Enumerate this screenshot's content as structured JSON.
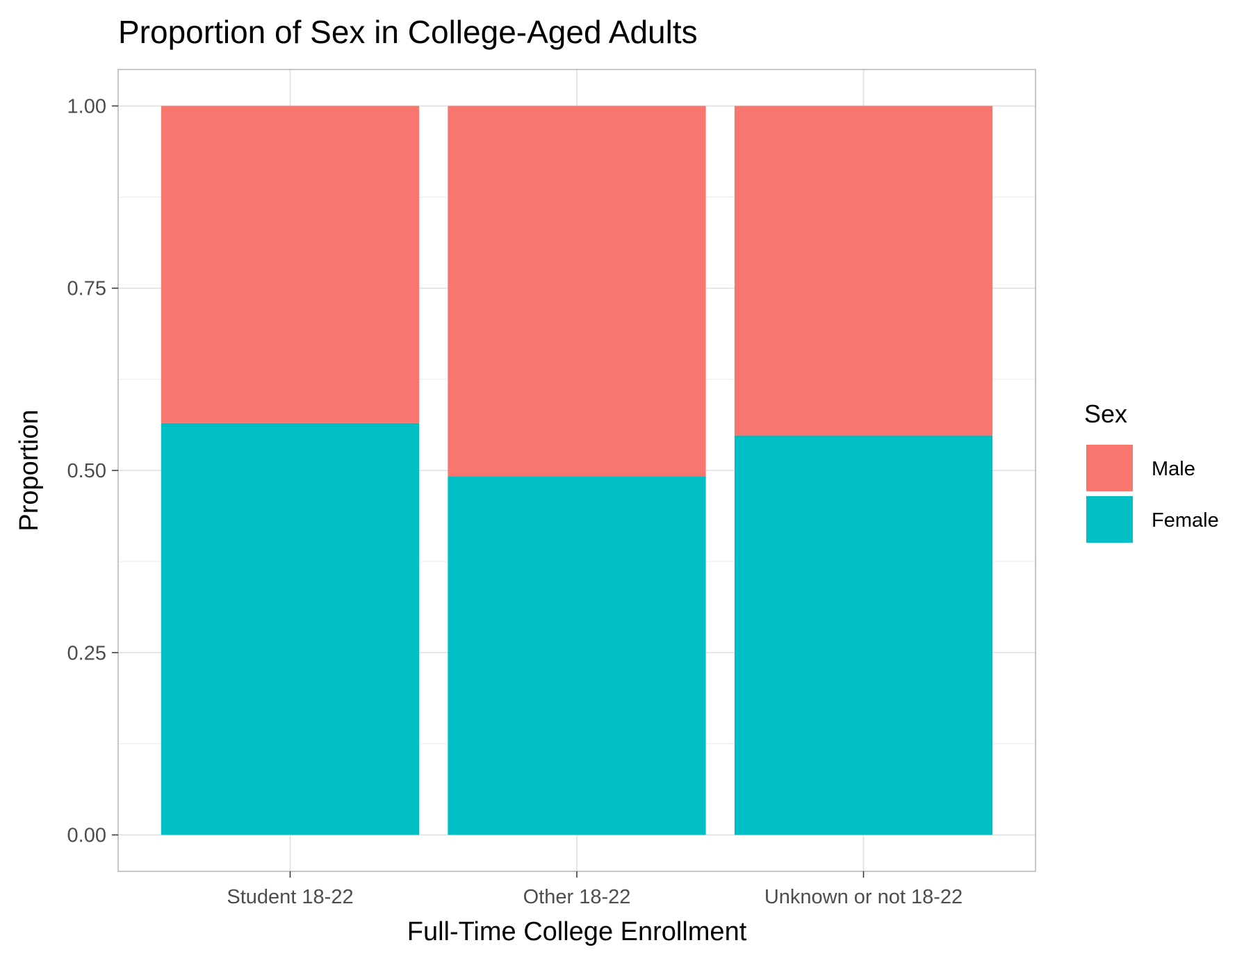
{
  "chart_data": {
    "type": "bar",
    "stacked": true,
    "title": "Proportion of Sex in College-Aged Adults",
    "xlabel": "Full-Time College Enrollment",
    "ylabel": "Proportion",
    "categories": [
      "Student 18-22",
      "Other 18-22",
      "Unknown or not 18-22"
    ],
    "ylim": [
      -0.05,
      1.05
    ],
    "yticks": [
      0.0,
      0.25,
      0.5,
      0.75,
      1.0
    ],
    "ytick_labels": [
      "0.00",
      "0.25",
      "0.50",
      "0.75",
      "1.00"
    ],
    "grid": true,
    "legend": {
      "title": "Sex",
      "position": "right"
    },
    "series": [
      {
        "name": "Female",
        "color": "#00BFC4",
        "values": [
          0.565,
          0.492,
          0.548
        ]
      },
      {
        "name": "Male",
        "color": "#F8766D",
        "values": [
          0.435,
          0.508,
          0.452
        ]
      }
    ],
    "legend_order": [
      "Male",
      "Female"
    ]
  }
}
